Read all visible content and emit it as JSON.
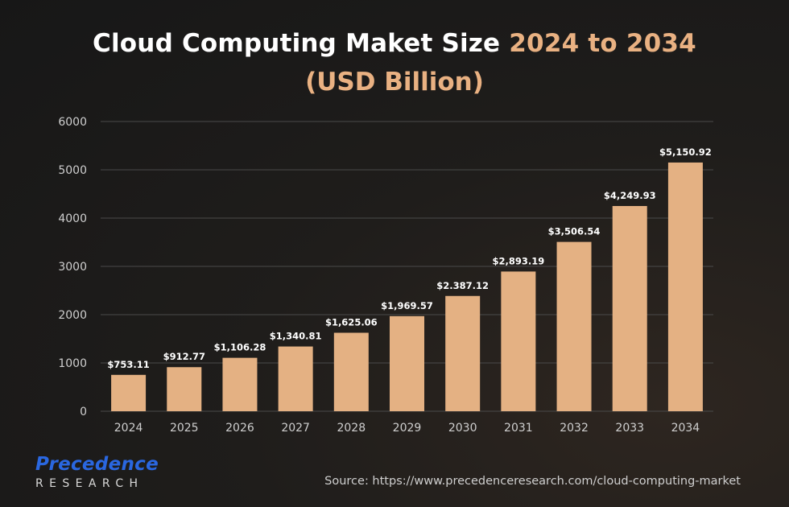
{
  "header": {
    "title_main": "Cloud Computing Maket Size",
    "title_accent": "2024 to 2034",
    "subtitle": "(USD Billion)"
  },
  "chart_data": {
    "type": "bar",
    "title": "Cloud Computing Maket Size 2024 to 2034",
    "subtitle": "(USD Billion)",
    "xlabel": "",
    "ylabel": "",
    "categories": [
      "2024",
      "2025",
      "2026",
      "2027",
      "2028",
      "2029",
      "2030",
      "2031",
      "2032",
      "2033",
      "2034"
    ],
    "values": [
      753.11,
      912.77,
      1106.28,
      1340.81,
      1625.06,
      1969.57,
      2387.12,
      2893.19,
      3506.54,
      4249.93,
      5150.92
    ],
    "data_labels": [
      "$753.11",
      "$912.77",
      "$1,106.28",
      "$1,340.81",
      "$1,625.06",
      "$1,969.57",
      "$2.387.12",
      "$2,893.19",
      "$3,506.54",
      "$4,249.93",
      "$5,150.92"
    ],
    "ylim": [
      0,
      6000
    ],
    "yticks": [
      0,
      1000,
      2000,
      3000,
      4000,
      5000,
      6000
    ],
    "grid": true,
    "colors": {
      "bar": "#e4b183",
      "grid": "#4a4a4a",
      "axis_text": "#cfcfcf",
      "label_text": "#ffffff"
    }
  },
  "branding": {
    "logo_top": "Precedence",
    "logo_bottom": "RESEARCH",
    "source": "Source: https://www.precedenceresearch.com/cloud-computing-market"
  }
}
